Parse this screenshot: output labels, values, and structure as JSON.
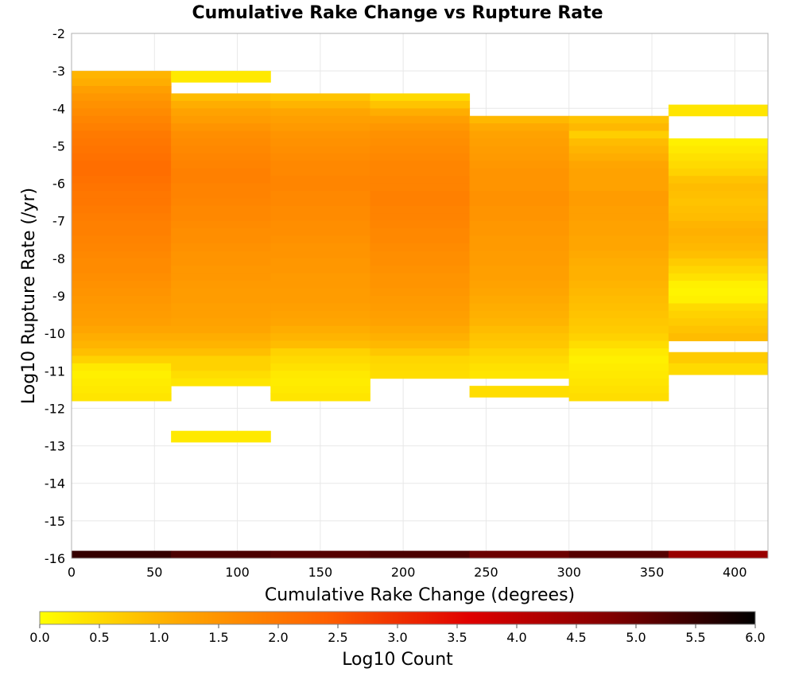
{
  "chart_data": {
    "type": "heatmap",
    "title": "Cumulative Rake Change vs Rupture Rate",
    "xlabel": "Cumulative Rake Change (degrees)",
    "ylabel": "Log10 Rupture Rate (/yr)",
    "xlim": [
      0,
      420
    ],
    "ylim": [
      -16,
      -2
    ],
    "x_ticks": [
      "0",
      "50",
      "100",
      "150",
      "200",
      "250",
      "300",
      "350",
      "400"
    ],
    "y_ticks": [
      "-2",
      "-3",
      "-4",
      "-5",
      "-6",
      "-7",
      "-8",
      "-9",
      "-10",
      "-11",
      "-12",
      "-13",
      "-14",
      "-15",
      "-16"
    ],
    "grid": true,
    "x_bin_width": 60,
    "y_bin_height": 0.2,
    "colorbar": {
      "label": "Log10 Count",
      "min": 0.0,
      "max": 6.0,
      "ticks": [
        "0.0",
        "0.5",
        "1.0",
        "1.5",
        "2.0",
        "2.5",
        "3.0",
        "3.5",
        "4.0",
        "4.5",
        "5.0",
        "5.5",
        "6.0"
      ],
      "colors": [
        "#ffff00",
        "#ffa500",
        "#ff6000",
        "#e00000",
        "#800000",
        "#000000"
      ]
    },
    "columns": [
      {
        "x_start": 0,
        "y_top": -3.0,
        "values": [
          1.0,
          1.1,
          1.3,
          1.45,
          1.55,
          1.65,
          1.75,
          1.85,
          1.95,
          2.0,
          2.05,
          2.1,
          2.15,
          2.15,
          2.1,
          2.05,
          2.0,
          2.0,
          1.95,
          1.9,
          1.85,
          1.85,
          1.8,
          1.75,
          1.7,
          1.65,
          1.65,
          1.6,
          1.55,
          1.5,
          1.45,
          1.4,
          1.35,
          1.3,
          1.2,
          1.1,
          1.0,
          0.85,
          0.6,
          0.3,
          0.2,
          0.25,
          0.3,
          0.35
        ]
      },
      {
        "x_start": 60,
        "y_top": -3.6,
        "values": [
          0.9,
          1.1,
          1.25,
          1.35,
          1.5,
          1.6,
          1.65,
          1.7,
          1.75,
          1.8,
          1.85,
          1.85,
          1.8,
          1.8,
          1.75,
          1.7,
          1.7,
          1.65,
          1.6,
          1.6,
          1.55,
          1.5,
          1.5,
          1.45,
          1.45,
          1.4,
          1.35,
          1.35,
          1.3,
          1.3,
          1.25,
          1.2,
          1.1,
          1.0,
          0.85,
          0.6,
          0.6,
          0.45,
          0.35
        ]
      },
      {
        "x_start": 120,
        "y_top": -3.6,
        "values": [
          0.8,
          1.0,
          1.2,
          1.3,
          1.4,
          1.5,
          1.55,
          1.6,
          1.65,
          1.7,
          1.7,
          1.75,
          1.75,
          1.7,
          1.7,
          1.65,
          1.65,
          1.6,
          1.6,
          1.55,
          1.5,
          1.5,
          1.45,
          1.45,
          1.4,
          1.4,
          1.35,
          1.35,
          1.3,
          1.25,
          1.2,
          1.1,
          1.0,
          0.9,
          0.6,
          0.5,
          0.4,
          0.3,
          0.25,
          0.3,
          0.35
        ]
      },
      {
        "x_start": 180,
        "y_top": -3.6,
        "values": [
          0.5,
          0.8,
          1.1,
          1.3,
          1.45,
          1.55,
          1.6,
          1.65,
          1.7,
          1.75,
          1.75,
          1.8,
          1.8,
          1.85,
          1.85,
          1.8,
          1.8,
          1.75,
          1.7,
          1.7,
          1.65,
          1.6,
          1.6,
          1.55,
          1.5,
          1.5,
          1.45,
          1.4,
          1.35,
          1.3,
          1.25,
          1.15,
          1.05,
          0.95,
          0.75,
          0.55,
          0.5,
          0.45
        ]
      },
      {
        "x_start": 240,
        "y_top": -4.2,
        "values": [
          0.95,
          1.15,
          1.25,
          1.3,
          1.35,
          1.4,
          1.45,
          1.5,
          1.5,
          1.5,
          1.55,
          1.55,
          1.5,
          1.5,
          1.45,
          1.45,
          1.4,
          1.4,
          1.35,
          1.35,
          1.3,
          1.3,
          1.25,
          1.2,
          1.15,
          1.1,
          1.05,
          1.0,
          0.9,
          0.8,
          0.75,
          0.6,
          0.5,
          0.4,
          0.35
        ]
      },
      {
        "x_start": 300,
        "y_top": -4.2,
        "values": [
          0.8,
          0.95,
          0.65,
          0.9,
          1.0,
          1.1,
          1.2,
          1.25,
          1.25,
          1.25,
          1.35,
          1.35,
          1.3,
          1.3,
          1.25,
          1.25,
          1.2,
          1.2,
          1.15,
          1.1,
          1.05,
          1.05,
          1.0,
          0.95,
          0.9,
          0.85,
          0.8,
          0.75,
          0.7,
          0.6,
          0.45,
          0.3,
          0.2,
          0.25,
          0.3,
          0.35,
          0.4,
          0.45
        ]
      },
      {
        "x_start": 360,
        "y_top": -4.8,
        "values": [
          0.2,
          0.3,
          0.4,
          0.5,
          0.6,
          0.8,
          0.9,
          0.85,
          0.8,
          0.85,
          0.9,
          1.0,
          1.05,
          1.0,
          0.95,
          0.85,
          0.7,
          0.55,
          0.4,
          0.2,
          0.15,
          0.2,
          0.5,
          0.6,
          0.7,
          0.8,
          0.9
        ]
      }
    ],
    "extra_cells": [
      {
        "x_start": 60,
        "y_top": -3.0,
        "height": 0.3,
        "value": 0.3
      },
      {
        "x_start": 60,
        "y_top": -12.6,
        "height": 0.3,
        "value": 0.3
      },
      {
        "x_start": 240,
        "y_top": -11.4,
        "height": 0.3,
        "value": 0.45
      },
      {
        "x_start": 360,
        "y_top": -3.9,
        "height": 0.3,
        "value": 0.35
      },
      {
        "x_start": 360,
        "y_top": -10.5,
        "height": 0.3,
        "value": 0.7
      },
      {
        "x_start": 360,
        "y_top": -10.8,
        "height": 0.3,
        "value": 0.5
      }
    ],
    "bottom_band": {
      "y_top": -15.8,
      "height": 0.2,
      "values": [
        5.5,
        5.3,
        5.2,
        5.3,
        5.0,
        5.2,
        4.5
      ]
    }
  }
}
